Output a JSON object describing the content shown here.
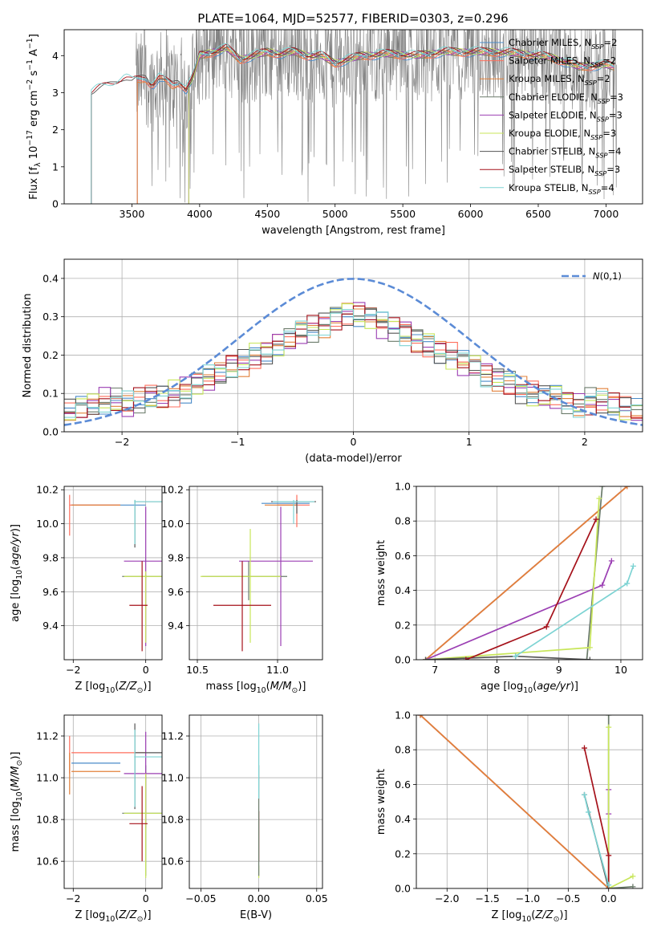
{
  "colors": {
    "chabrier_miles": "#4a8bc9",
    "salpeter_miles": "#ff6f5c",
    "kroupa_miles": "#e2803a",
    "chabrier_elodie": "#6b7b6b",
    "salpeter_elodie": "#9b3fb3",
    "kroupa_elodie": "#c8e65a",
    "chabrier_stelib": "#555555",
    "salpeter_stelib": "#a5111a",
    "kroupa_stelib": "#7dd3d3",
    "data_grey": "#808080",
    "normal_curve": "#5b8bd6",
    "grid": "#b0b0b0"
  },
  "chart_data": [
    {
      "id": "spectrum",
      "type": "line",
      "title": "PLATE=1064, MJD=52577, FIBERID=0303, z=0.296",
      "xlabel": "wavelength [Angstrom, rest frame]",
      "ylabel": "Flux [f_λ 10^-17 erg cm^-2 s^-1 A^-1]",
      "xlim": [
        3000,
        7270
      ],
      "ylim": [
        0,
        4.7
      ],
      "xticks": [
        3500,
        4000,
        4500,
        5000,
        5500,
        6000,
        6500,
        7000
      ],
      "yticks": [
        0,
        1,
        2,
        3,
        4
      ],
      "legend": [
        "Chabrier MILES, N_SSP=2",
        "Salpeter MILES, N_SSP=2",
        "Kroupa MILES, N_SSP=2",
        "Chabrier ELODIE, N_SSP=3",
        "Salpeter ELODIE, N_SSP=3",
        "Kroupa ELODIE, N_SSP=3",
        "Chabrier STELIB, N_SSP=4",
        "Salpeter STELIB, N_SSP=3",
        "Kroupa STELIB, N_SSP=4"
      ],
      "legend_position": "top-right",
      "grid": false,
      "data_series": {
        "name": "data",
        "x_range": [
          3530,
          7080
        ]
      },
      "model_continuum": {
        "x": [
          3200,
          3250,
          3300,
          3350,
          3400,
          3450,
          3500,
          3550,
          3600,
          3650,
          3700,
          3750,
          3800,
          3850,
          3900,
          3950,
          4000,
          4100,
          4200,
          4300,
          4400,
          4500,
          4600,
          4700,
          4800,
          4900,
          5000,
          5200,
          5400,
          5600,
          5800,
          6000,
          6200,
          6400,
          6600,
          6800,
          7000,
          7060
        ],
        "y": [
          3.0,
          3.1,
          3.15,
          3.2,
          3.3,
          3.4,
          3.3,
          3.35,
          3.4,
          3.2,
          3.4,
          3.3,
          3.2,
          3.3,
          3.1,
          3.4,
          4.0,
          4.1,
          4.2,
          3.9,
          4.0,
          4.1,
          4.05,
          4.1,
          4.0,
          4.0,
          3.8,
          4.0,
          4.05,
          4.0,
          4.1,
          4.1,
          4.1,
          4.05,
          3.95,
          3.7,
          3.75,
          3.7
        ]
      },
      "model_start_wavelength": {
        "Chabrier MILES": 3540,
        "Salpeter MILES": 3540,
        "Kroupa MILES": 3540,
        "Chabrier ELODIE": 3920,
        "Salpeter ELODIE": 3920,
        "Kroupa ELODIE": 3920,
        "Chabrier STELIB": 3200,
        "Salpeter STELIB": 3200,
        "Kroupa STELIB": 3200
      }
    },
    {
      "id": "residuals",
      "type": "line",
      "xlabel": "(data-model)/error",
      "ylabel": "Normed distribution",
      "xlim": [
        -2.5,
        2.5
      ],
      "ylim": [
        0,
        0.45
      ],
      "xticks": [
        -2,
        -1,
        0,
        1,
        2
      ],
      "yticks": [
        0.0,
        0.1,
        0.2,
        0.3,
        0.4
      ],
      "legend": [
        "N(0,1)"
      ],
      "legend_position": "top-right",
      "grid": true,
      "histogram_bin_width": 0.1,
      "histogram_base": [
        0.05,
        0.06,
        0.07,
        0.08,
        0.08,
        0.07,
        0.08,
        0.09,
        0.09,
        0.1,
        0.11,
        0.13,
        0.14,
        0.15,
        0.17,
        0.18,
        0.2,
        0.21,
        0.23,
        0.24,
        0.26,
        0.27,
        0.28,
        0.3,
        0.31,
        0.32,
        0.33,
        0.34,
        0.35,
        0.36,
        0.37,
        0.37,
        0.38,
        0.38,
        0.37,
        0.37,
        0.36,
        0.35,
        0.34,
        0.33,
        0.32,
        0.3,
        0.29,
        0.28,
        0.27,
        0.26,
        0.24,
        0.23,
        0.21,
        0.2,
        0.18,
        0.17,
        0.15,
        0.14,
        0.13,
        0.12,
        0.11,
        0.1,
        0.09,
        0.08,
        0.07,
        0.06,
        0.06,
        0.05,
        0.05,
        0.05,
        0.05,
        0.05,
        0.05,
        0.04,
        0.04,
        0.04,
        0.04,
        0.05,
        0.04,
        0.05,
        0.05,
        0.05,
        0.04,
        0.05,
        0.04,
        0.04,
        0.05,
        0.04,
        0.04,
        0.04,
        0.04,
        0.05,
        0.04,
        0.04,
        0.04,
        0.04,
        0.05,
        0.04,
        0.04,
        0.04,
        0.04,
        0.04,
        0.04,
        0.04
      ]
    },
    {
      "id": "age_vs_Z",
      "type": "scatter",
      "xlabel": "Z [log10(Z/Z_sun)]",
      "ylabel": "age [log10(age/yr)]",
      "xlim": [
        -2.25,
        0.45
      ],
      "ylim": [
        9.2,
        10.22
      ],
      "xticks": [
        -2,
        0
      ],
      "yticks": [
        9.4,
        9.6,
        9.8,
        10.0,
        10.2
      ],
      "grid": true,
      "points": [
        {
          "model": "Chabrier MILES",
          "x": -2.1,
          "y": 10.11,
          "xlo": -2.05,
          "xhi": 0.0,
          "ylo": 10.11,
          "yhi": 10.11
        },
        {
          "model": "Salpeter MILES",
          "x": -2.1,
          "y": 10.11,
          "xlo": -2.1,
          "xhi": -0.7,
          "ylo": 9.93,
          "yhi": 10.17
        },
        {
          "model": "Kroupa MILES",
          "x": -2.1,
          "y": 10.11,
          "xlo": -2.05,
          "xhi": -0.7,
          "ylo": 10.11,
          "yhi": 10.11
        },
        {
          "model": "Chabrier ELODIE",
          "x": 0.0,
          "y": 9.69,
          "xlo": -0.65,
          "xhi": 0.7,
          "ylo": 9.68,
          "yhi": 9.7
        },
        {
          "model": "Salpeter ELODIE",
          "x": 0.0,
          "y": 9.78,
          "xlo": -0.6,
          "xhi": 0.75,
          "ylo": 9.28,
          "yhi": 10.1
        },
        {
          "model": "Kroupa ELODIE",
          "x": 0.0,
          "y": 9.69,
          "xlo": -0.6,
          "xhi": 0.72,
          "ylo": 9.3,
          "yhi": 9.72
        },
        {
          "model": "Chabrier STELIB",
          "x": -0.3,
          "y": 10.13,
          "xlo": -0.3,
          "xhi": 0.5,
          "ylo": 9.86,
          "yhi": 10.14
        },
        {
          "model": "Salpeter STELIB",
          "x": -0.1,
          "y": 9.52,
          "xlo": -0.45,
          "xhi": 0.05,
          "ylo": 9.25,
          "yhi": 9.78
        },
        {
          "model": "Kroupa STELIB",
          "x": -0.3,
          "y": 10.13,
          "xlo": -0.32,
          "xhi": 0.55,
          "ylo": 9.88,
          "yhi": 10.14
        }
      ]
    },
    {
      "id": "age_vs_mass",
      "type": "scatter",
      "xlabel": "mass [log10(M/M_sun)]",
      "ylabel": "",
      "xlim": [
        10.45,
        11.28
      ],
      "ylim": [
        9.2,
        10.22
      ],
      "xticks": [
        10.5,
        11.0
      ],
      "yticks": [
        9.4,
        9.6,
        9.8,
        10.0,
        10.2
      ],
      "grid": true,
      "points": [
        {
          "model": "Chabrier MILES",
          "x": 11.06,
          "y": 10.12,
          "xlo": 10.9,
          "xhi": 11.2,
          "ylo": 10.12,
          "yhi": 10.12
        },
        {
          "model": "Salpeter MILES",
          "x": 11.12,
          "y": 10.11,
          "xlo": 11.0,
          "xhi": 11.2,
          "ylo": 9.98,
          "yhi": 10.17
        },
        {
          "model": "Kroupa MILES",
          "x": 11.03,
          "y": 10.11,
          "xlo": 10.92,
          "xhi": 11.12,
          "ylo": 10.11,
          "yhi": 10.11
        },
        {
          "model": "Chabrier ELODIE",
          "x": 10.82,
          "y": 9.69,
          "xlo": 10.53,
          "xhi": 11.06,
          "ylo": 9.55,
          "yhi": 9.78
        },
        {
          "model": "Salpeter ELODIE",
          "x": 11.02,
          "y": 9.78,
          "xlo": 10.76,
          "xhi": 11.22,
          "ylo": 9.28,
          "yhi": 10.1
        },
        {
          "model": "Kroupa ELODIE",
          "x": 10.83,
          "y": 9.69,
          "xlo": 10.52,
          "xhi": 11.02,
          "ylo": 9.3,
          "yhi": 9.97
        },
        {
          "model": "Chabrier STELIB",
          "x": 11.12,
          "y": 10.13,
          "xlo": 10.96,
          "xhi": 11.24,
          "ylo": 10.06,
          "yhi": 10.14
        },
        {
          "model": "Salpeter STELIB",
          "x": 10.78,
          "y": 9.52,
          "xlo": 10.6,
          "xhi": 10.96,
          "ylo": 9.25,
          "yhi": 9.78
        },
        {
          "model": "Kroupa STELIB",
          "x": 11.1,
          "y": 10.13,
          "xlo": 10.97,
          "xhi": 11.23,
          "ylo": 10.0,
          "yhi": 10.14
        }
      ]
    },
    {
      "id": "weight_vs_age",
      "type": "line",
      "xlabel": "age [log10(age/yr)]",
      "ylabel": "mass weight",
      "xlim": [
        6.7,
        10.35
      ],
      "ylim": [
        0,
        1.0
      ],
      "xticks": [
        7,
        8,
        9,
        10
      ],
      "yticks": [
        0.0,
        0.2,
        0.4,
        0.6,
        0.8,
        1.0
      ],
      "grid": true,
      "series": [
        {
          "name": "Chabrier MILES",
          "x": [
            6.85,
            10.1
          ],
          "y": [
            0.0,
            1.0
          ]
        },
        {
          "name": "Salpeter MILES",
          "x": [
            6.85,
            10.1
          ],
          "y": [
            0.0,
            1.0
          ]
        },
        {
          "name": "Kroupa MILES",
          "x": [
            6.85,
            10.1
          ],
          "y": [
            0.0,
            1.0
          ]
        },
        {
          "name": "Chabrier ELODIE",
          "x": [
            9.45,
            9.7
          ],
          "y": [
            0.0,
            1.0
          ]
        },
        {
          "name": "Salpeter ELODIE",
          "x": [
            6.85,
            9.7,
            9.85
          ],
          "y": [
            0.0,
            0.43,
            0.57
          ]
        },
        {
          "name": "Kroupa ELODIE",
          "x": [
            6.85,
            9.5,
            9.65
          ],
          "y": [
            0.0,
            0.07,
            0.93
          ]
        },
        {
          "name": "Chabrier STELIB",
          "x": [
            6.85,
            8.3,
            9.5
          ],
          "y": [
            0.0,
            0.02,
            0.0
          ]
        },
        {
          "name": "Salpeter STELIB",
          "x": [
            7.5,
            8.8,
            9.6
          ],
          "y": [
            0.0,
            0.19,
            0.81
          ]
        },
        {
          "name": "Kroupa STELIB",
          "x": [
            8.3,
            10.1,
            10.2
          ],
          "y": [
            0.02,
            0.44,
            0.54
          ]
        }
      ]
    },
    {
      "id": "mass_vs_Z",
      "type": "scatter",
      "xlabel": "Z [log10(Z/Z_sun)]",
      "ylabel": "mass [log10(M/M_sun)]",
      "xlim": [
        -2.25,
        0.45
      ],
      "ylim": [
        10.47,
        11.3
      ],
      "xticks": [
        -2,
        0
      ],
      "yticks": [
        10.6,
        10.8,
        11.0,
        11.2
      ],
      "grid": true,
      "points": [
        {
          "model": "Chabrier MILES",
          "x": -2.1,
          "y": 11.07,
          "xlo": -2.05,
          "xhi": -0.7,
          "ylo": 11.07,
          "yhi": 11.07
        },
        {
          "model": "Salpeter MILES",
          "x": -2.1,
          "y": 11.12,
          "xlo": -2.05,
          "xhi": 0.0,
          "ylo": 11.02,
          "yhi": 11.2
        },
        {
          "model": "Kroupa MILES",
          "x": -2.1,
          "y": 11.03,
          "xlo": -2.05,
          "xhi": -0.7,
          "ylo": 10.92,
          "yhi": 11.12
        },
        {
          "model": "Chabrier ELODIE",
          "x": 0.0,
          "y": 10.83,
          "xlo": -0.65,
          "xhi": 0.7,
          "ylo": 10.53,
          "yhi": 11.06
        },
        {
          "model": "Salpeter ELODIE",
          "x": 0.0,
          "y": 11.02,
          "xlo": -0.6,
          "xhi": 0.75,
          "ylo": 10.76,
          "yhi": 11.22
        },
        {
          "model": "Kroupa ELODIE",
          "x": 0.0,
          "y": 10.83,
          "xlo": -0.6,
          "xhi": 0.72,
          "ylo": 10.52,
          "yhi": 11.02
        },
        {
          "model": "Chabrier STELIB",
          "x": -0.3,
          "y": 11.12,
          "xlo": -0.3,
          "xhi": 0.5,
          "ylo": 10.85,
          "yhi": 11.26
        },
        {
          "model": "Salpeter STELIB",
          "x": -0.1,
          "y": 10.78,
          "xlo": -0.45,
          "xhi": 0.05,
          "ylo": 10.6,
          "yhi": 10.96
        },
        {
          "model": "Kroupa STELIB",
          "x": -0.3,
          "y": 11.1,
          "xlo": -0.32,
          "xhi": 0.55,
          "ylo": 10.86,
          "yhi": 11.23
        }
      ]
    },
    {
      "id": "mass_vs_ebv",
      "type": "scatter",
      "xlabel": "E(B-V)",
      "ylabel": "",
      "xlim": [
        -0.06,
        0.055
      ],
      "ylim": [
        10.47,
        11.3
      ],
      "xticks": [
        -0.05,
        0.0,
        0.05
      ],
      "yticks": [
        10.6,
        10.8,
        11.0,
        11.2
      ],
      "grid": true,
      "points": [
        {
          "model": "Kroupa ELODIE",
          "x": 0.0,
          "y": 10.55,
          "xlo": 0.0,
          "xhi": 0.0,
          "ylo": 10.52,
          "yhi": 10.58
        },
        {
          "model": "Salpeter STELIB",
          "x": 0.0,
          "y": 10.78,
          "xlo": 0.0,
          "xhi": 0.0,
          "ylo": 10.6,
          "yhi": 10.84
        },
        {
          "model": "Chabrier ELODIE",
          "x": 0.0,
          "y": 10.83,
          "xlo": 0.0,
          "xhi": 0.0,
          "ylo": 10.53,
          "yhi": 11.06
        },
        {
          "model": "Kroupa STELIB",
          "x": 0.0,
          "y": 11.1,
          "xlo": 0.0,
          "xhi": 0.0,
          "ylo": 10.9,
          "yhi": 11.26
        }
      ]
    },
    {
      "id": "weight_vs_Z",
      "type": "line",
      "xlabel": "Z [log10(Z/Z_sun)]",
      "ylabel": "mass weight",
      "xlim": [
        -2.38,
        0.42
      ],
      "ylim": [
        0,
        1.0
      ],
      "xticks": [
        -2.0,
        -1.5,
        -1.0,
        -0.5,
        0.0
      ],
      "yticks": [
        0.0,
        0.2,
        0.4,
        0.6,
        0.8,
        1.0
      ],
      "grid": true,
      "series": [
        {
          "name": "Chabrier MILES",
          "x": [
            -2.33,
            0.0
          ],
          "y": [
            1.0,
            0.0
          ]
        },
        {
          "name": "Salpeter MILES",
          "x": [
            -2.33,
            0.0
          ],
          "y": [
            1.0,
            0.0
          ]
        },
        {
          "name": "Kroupa MILES",
          "x": [
            -2.33,
            0.0
          ],
          "y": [
            1.0,
            0.0
          ]
        },
        {
          "name": "Chabrier ELODIE",
          "x": [
            0.0,
            0.0,
            0.3
          ],
          "y": [
            1.0,
            0.0,
            0.01
          ]
        },
        {
          "name": "Salpeter ELODIE",
          "x": [
            0.0,
            0.0
          ],
          "y": [
            0.57,
            0.43
          ]
        },
        {
          "name": "Kroupa ELODIE",
          "x": [
            0.0,
            0.0,
            0.3
          ],
          "y": [
            0.93,
            0.0,
            0.07
          ]
        },
        {
          "name": "Chabrier STELIB",
          "x": [
            -0.3,
            0.0
          ],
          "y": [
            0.54,
            0.0
          ]
        },
        {
          "name": "Salpeter STELIB",
          "x": [
            -0.3,
            0.0,
            0.0
          ],
          "y": [
            0.81,
            0.19,
            0.0
          ]
        },
        {
          "name": "Kroupa STELIB",
          "x": [
            -0.3,
            -0.25,
            0.0
          ],
          "y": [
            0.54,
            0.44,
            0.02
          ]
        }
      ]
    }
  ]
}
